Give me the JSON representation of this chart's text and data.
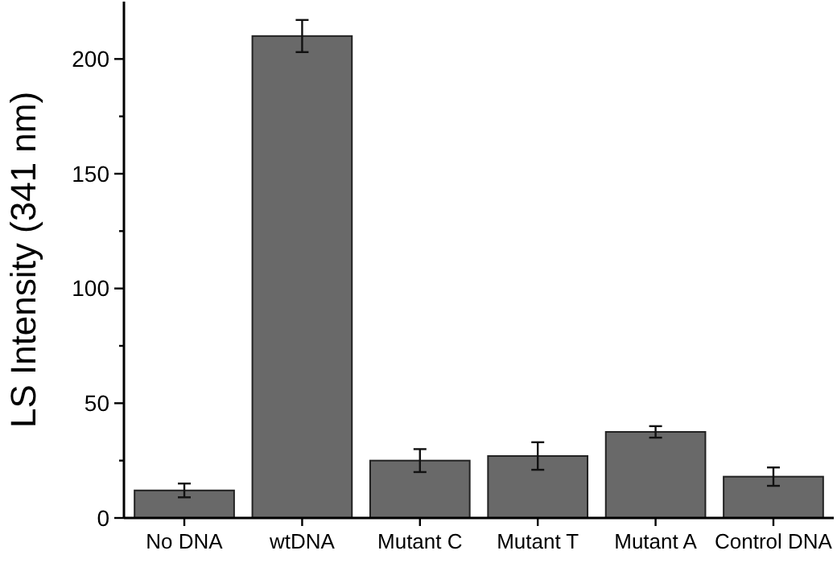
{
  "chart_data": {
    "type": "bar",
    "ylabel": "LS Intensity (341 nm)",
    "categories": [
      "No DNA",
      "wtDNA",
      "Mutant C",
      "Mutant T",
      "Mutant A",
      "Control DNA"
    ],
    "values": [
      12,
      210,
      25,
      27,
      37.5,
      18
    ],
    "errors": [
      3,
      7,
      5,
      6,
      2.5,
      4
    ],
    "color": "#696969",
    "ylim": [
      0,
      225
    ],
    "yticks": [
      0,
      {
        "value": 25,
        "label": null
      },
      50,
      {
        "value": 75,
        "label": null
      },
      100,
      {
        "value": 125,
        "label": null
      },
      150,
      {
        "value": 175,
        "label": null
      },
      200
    ],
    "grid": false
  }
}
